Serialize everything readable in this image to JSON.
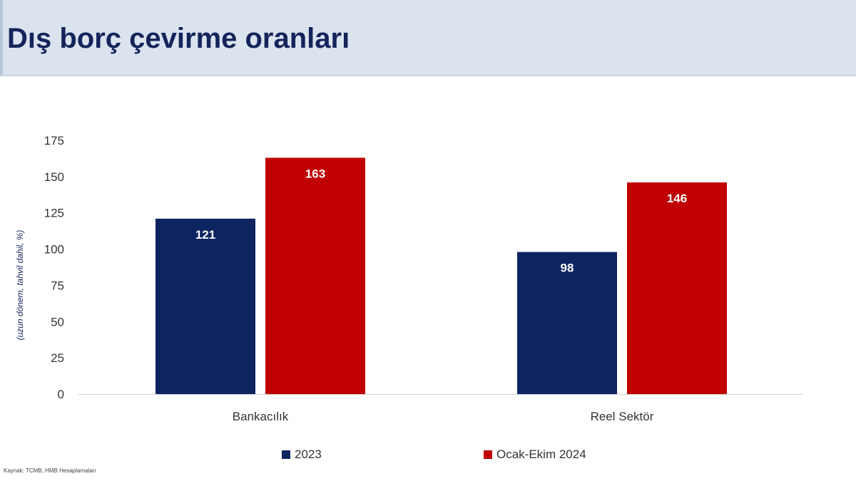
{
  "page": {
    "title": "Dış borç çevirme oranları",
    "source": "Kaynak: TCMB, HMB Hesaplamaları"
  },
  "colors": {
    "series_2023": "#0e2461",
    "series_2024": "#c00000",
    "header_bg": "#dbe3ef",
    "title": "#14245a"
  },
  "chart_data": {
    "type": "bar",
    "title": "",
    "ylabel": "(uzun dönem, tahvil dahil, %)",
    "xlabel": "",
    "categories": [
      "Bankacılık",
      "Reel Sektör"
    ],
    "series": [
      {
        "name": "2023",
        "values": [
          121,
          98
        ],
        "color": "#0e2461"
      },
      {
        "name": "Ocak-Ekim 2024",
        "values": [
          163,
          146
        ],
        "color": "#c00000"
      }
    ],
    "ylim": [
      0,
      175
    ],
    "yticks": [
      0,
      25,
      50,
      75,
      100,
      125,
      150,
      175
    ],
    "grid": false,
    "legend_position": "bottom",
    "data_labels": true
  }
}
